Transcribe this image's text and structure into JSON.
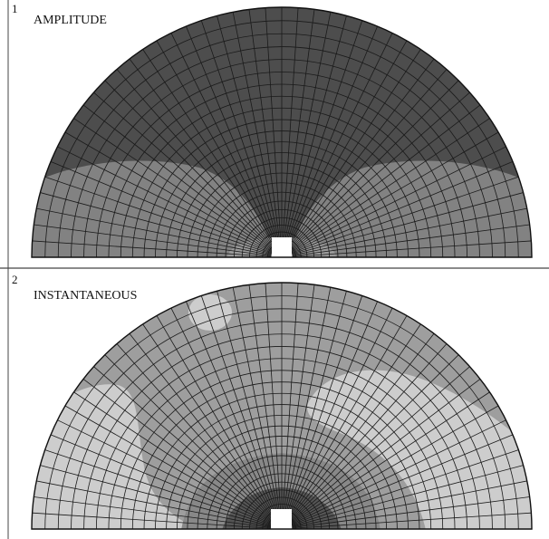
{
  "figure": {
    "panels": [
      {
        "number": "1",
        "title": "AMPLITUDE",
        "fill_colors": {
          "outer": "#4d4d4d",
          "lobe": "#828282",
          "core": "#9a9a9a"
        }
      },
      {
        "number": "2",
        "title": "INSTANTANEOUS",
        "fill_colors": {
          "background": "#9e9e9e",
          "light": "#cdcdcd",
          "mid": "#888888",
          "dark": "#555555"
        }
      }
    ],
    "mesh": {
      "line_color": "#1a1a1a",
      "radial_divisions": 48,
      "ring_divisions": 24
    }
  }
}
